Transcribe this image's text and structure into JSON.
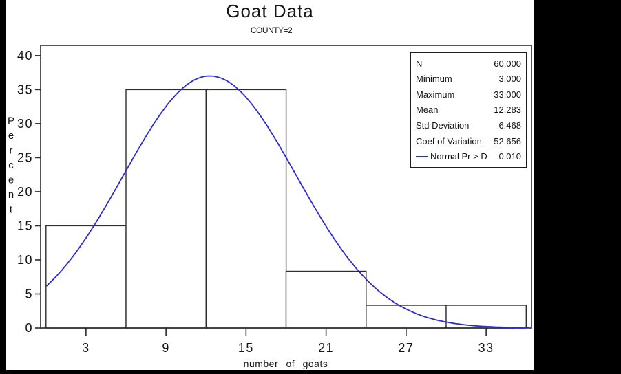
{
  "title": "Goat Data",
  "subtitle": "COUNTY=2",
  "colors": {
    "curve_blue": "#2b2bd0",
    "line_black": "#1d1d1d",
    "paper": "#ffffff",
    "background": "#000000"
  },
  "y_axis": {
    "label_vertical": "Percent",
    "ticks": [
      0,
      5,
      10,
      15,
      20,
      25,
      30,
      35,
      40
    ]
  },
  "x_axis": {
    "label": "number of goats",
    "ticks": [
      3,
      9,
      15,
      21,
      27,
      33
    ]
  },
  "stats_box": {
    "rows": [
      {
        "label": "N",
        "value": "60.000"
      },
      {
        "label": "Minimum",
        "value": "3.000"
      },
      {
        "label": "Maximum",
        "value": "33.000"
      },
      {
        "label": "Mean",
        "value": "12.283"
      },
      {
        "label": "Std Deviation",
        "value": "6.468"
      },
      {
        "label": "Coef of Variation",
        "value": "52.656"
      },
      {
        "label": "Normal Pr > D",
        "value": "0.010"
      }
    ]
  },
  "chart_data": {
    "type": "bar",
    "subtype": "histogram-with-normal-curve",
    "title": "Goat Data",
    "subtitle": "COUNTY=2",
    "xlabel": "number of goats",
    "ylabel": "Percent",
    "bin_midpoints": [
      3,
      9,
      15,
      21,
      27,
      33
    ],
    "bin_width": 6,
    "values_percent": [
      15,
      35,
      35,
      8.333,
      3.333,
      3.333
    ],
    "curve": {
      "distribution": "normal",
      "mean": 12.283,
      "std_dev": 6.468,
      "peak_percent": 37.0,
      "x_start": 0,
      "x_end": 36.2
    },
    "xlim": [
      -0.4,
      36.4
    ],
    "ylim": [
      0,
      41.5
    ],
    "x_ticks": [
      3,
      9,
      15,
      21,
      27,
      33
    ],
    "y_ticks": [
      0,
      5,
      10,
      15,
      20,
      25,
      30,
      35,
      40
    ],
    "grid": false,
    "legend": {
      "position": "top-right",
      "entries": [
        "N 60.000",
        "Minimum 3.000",
        "Maximum 33.000",
        "Mean 12.283",
        "Std Deviation 6.468",
        "Coef of Variation 52.656",
        "Normal Pr > D 0.010"
      ]
    }
  }
}
